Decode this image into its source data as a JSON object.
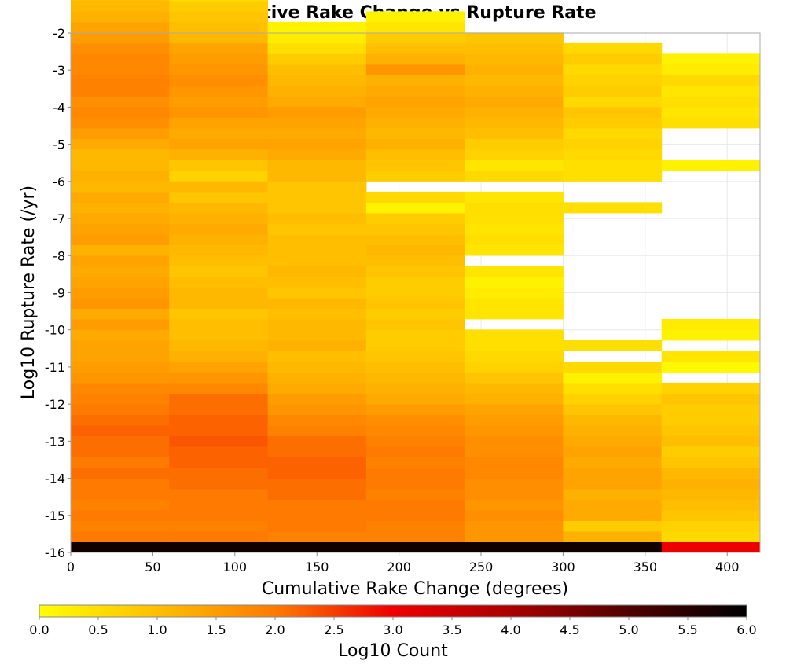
{
  "chart_data": {
    "type": "heatmap",
    "title": "Cumulative Rake Change vs Rupture Rate",
    "xlabel": "Cumulative Rake Change (degrees)",
    "ylabel": "Log10 Rupture Rate (/yr)",
    "xlim": [
      0,
      420
    ],
    "ylim": [
      -16,
      -2
    ],
    "x_ticks": [
      "0",
      "50",
      "100",
      "150",
      "200",
      "250",
      "300",
      "350",
      "400"
    ],
    "y_ticks": [
      "-2",
      "-3",
      "-4",
      "-5",
      "-6",
      "-7",
      "-8",
      "-9",
      "-10",
      "-11",
      "-12",
      "-13",
      "-14",
      "-15",
      "-16"
    ],
    "grid": true,
    "x_bin_edges": [
      0,
      60,
      120,
      180,
      240,
      300,
      360,
      420
    ],
    "y_bin_start": -16,
    "y_bin_width": 0.286,
    "values_note": "columns[i] lists Log10 Count per rupture-rate bin from bottom (-16) upward; null = empty bin",
    "columns": [
      [
        5.8,
        2.0,
        1.9,
        2.0,
        1.9,
        2.0,
        2.0,
        2.1,
        2.0,
        2.1,
        2.1,
        2.2,
        2.1,
        2.0,
        1.9,
        1.8,
        1.6,
        1.5,
        1.4,
        1.4,
        1.3,
        1.5,
        1.3,
        1.6,
        1.5,
        1.4,
        1.3,
        1.4,
        1.2,
        1.5,
        1.4,
        1.3,
        1.2,
        1.3,
        1.1,
        1.2,
        1.1,
        1.1,
        1.3,
        1.5,
        1.7,
        1.8,
        1.7,
        1.9,
        1.9,
        1.8,
        1.8,
        1.7,
        1.5,
        1.4,
        1.2,
        1.1,
        1.0,
        1.0,
        1.0,
        0.9,
        0.8,
        0.6,
        0.4,
        0.3,
        null,
        null,
        null,
        null,
        null,
        null,
        null,
        null,
        null,
        null,
        null,
        null,
        null,
        null,
        null,
        null,
        null,
        null,
        null,
        null
      ],
      [
        5.8,
        2.0,
        1.9,
        2.0,
        2.0,
        2.0,
        2.1,
        2.1,
        2.2,
        2.2,
        2.3,
        2.2,
        2.2,
        2.1,
        2.1,
        1.8,
        1.6,
        1.4,
        1.2,
        1.1,
        1.0,
        1.0,
        0.9,
        1.1,
        1.1,
        1.0,
        0.9,
        1.0,
        1.1,
        1.2,
        1.3,
        1.2,
        1.1,
        0.9,
        1.1,
        0.7,
        0.9,
        1.2,
        1.4,
        1.3,
        1.4,
        1.6,
        1.5,
        1.6,
        1.7,
        1.6,
        1.5,
        1.4,
        1.1,
        1.0,
        0.9,
        0.8,
        0.5,
        0.3,
        null,
        null,
        null,
        null,
        null,
        null,
        null,
        null,
        null,
        null,
        null,
        null,
        null,
        null,
        null,
        null,
        null,
        null,
        null,
        null,
        null,
        null,
        null,
        null,
        null,
        null
      ],
      [
        5.8,
        1.9,
        2.0,
        2.0,
        2.0,
        2.1,
        2.1,
        2.2,
        2.2,
        2.1,
        2.1,
        1.9,
        1.8,
        1.6,
        1.5,
        1.3,
        1.2,
        1.1,
        1.0,
        1.2,
        1.1,
        1.1,
        1.0,
        1.1,
        0.9,
        1.0,
        1.1,
        1.0,
        1.0,
        1.0,
        0.9,
        1.0,
        0.9,
        0.9,
        0.9,
        1.1,
        1.1,
        1.3,
        1.4,
        1.3,
        1.4,
        1.5,
        1.3,
        1.2,
        1.1,
        1.0,
        0.8,
        0.5,
        0.3,
        0.2,
        null,
        null,
        null,
        null,
        null,
        null,
        null,
        null,
        null,
        null,
        null,
        null,
        null,
        null,
        null,
        null,
        null,
        null,
        null,
        null,
        null,
        null,
        null,
        null,
        null,
        null,
        null,
        null,
        null,
        null
      ],
      [
        5.8,
        1.9,
        1.9,
        2.0,
        2.0,
        1.9,
        2.0,
        2.0,
        1.9,
        2.0,
        1.9,
        1.8,
        1.7,
        1.5,
        1.3,
        1.2,
        1.1,
        1.0,
        0.9,
        0.8,
        0.8,
        0.9,
        0.8,
        0.9,
        0.8,
        0.8,
        0.9,
        1.0,
        1.1,
        1.0,
        0.9,
        0.8,
        0.2,
        0.6,
        null,
        0.8,
        0.9,
        1.0,
        1.2,
        1.1,
        1.2,
        1.3,
        1.4,
        1.3,
        1.2,
        1.6,
        1.2,
        1.0,
        0.8,
        0.4,
        0.2,
        null,
        null,
        null,
        null,
        null,
        null,
        null,
        null,
        null,
        null,
        null,
        null,
        null,
        null,
        null,
        null,
        null,
        null,
        null,
        null,
        null,
        null,
        null,
        null,
        null,
        null,
        null,
        null,
        null
      ],
      [
        5.8,
        1.6,
        1.6,
        1.7,
        1.6,
        1.7,
        1.7,
        1.8,
        1.8,
        1.7,
        1.7,
        1.6,
        1.5,
        1.4,
        1.2,
        1.1,
        0.9,
        0.7,
        0.6,
        0.5,
        0.5,
        null,
        0.4,
        0.4,
        0.3,
        0.2,
        0.4,
        null,
        0.4,
        0.5,
        0.4,
        0.5,
        0.5,
        0.4,
        null,
        0.6,
        0.4,
        0.7,
        0.8,
        1.0,
        1.1,
        1.2,
        1.3,
        1.2,
        1.1,
        1.2,
        1.1,
        1.0,
        0.9,
        null,
        null,
        null,
        null,
        null,
        null,
        null,
        null,
        null,
        null,
        null,
        null,
        null,
        null,
        null,
        null,
        null,
        null,
        null,
        null,
        null,
        null,
        null,
        null,
        null,
        null,
        null,
        null,
        null,
        null,
        null
      ],
      [
        5.8,
        1.2,
        0.8,
        1.3,
        1.3,
        1.2,
        1.4,
        1.4,
        1.3,
        1.4,
        1.3,
        1.2,
        1.1,
        0.9,
        0.7,
        0.5,
        0.2,
        0.6,
        null,
        0.5,
        null,
        null,
        null,
        null,
        null,
        null,
        null,
        null,
        null,
        null,
        null,
        null,
        0.5,
        null,
        null,
        0.5,
        0.5,
        0.6,
        0.7,
        0.6,
        0.8,
        0.9,
        0.6,
        0.8,
        0.7,
        0.6,
        0.8,
        0.6,
        null,
        null,
        null,
        null,
        null,
        null,
        null,
        null,
        null,
        null,
        null,
        null,
        null,
        null,
        null,
        null,
        null,
        null,
        null,
        null,
        null,
        null,
        null,
        null,
        null,
        null,
        null,
        null,
        null,
        null,
        null,
        null
      ],
      [
        3.0,
        0.6,
        0.7,
        0.9,
        1.0,
        1.1,
        1.2,
        1.1,
        0.9,
        0.8,
        1.0,
        0.9,
        0.8,
        0.8,
        0.9,
        0.7,
        null,
        0.1,
        0.4,
        null,
        0.2,
        0.3,
        null,
        null,
        null,
        null,
        null,
        null,
        null,
        null,
        null,
        null,
        null,
        null,
        null,
        null,
        0.2,
        null,
        null,
        null,
        0.5,
        0.4,
        0.5,
        0.4,
        0.6,
        0.3,
        0.2,
        null,
        null,
        null,
        null,
        null,
        null,
        null,
        null,
        null,
        null,
        null,
        null,
        null,
        null,
        null,
        null,
        null,
        null,
        null,
        null,
        null,
        null,
        null,
        null,
        null,
        null,
        null,
        null,
        null,
        null,
        null,
        null,
        null
      ]
    ],
    "colorbar": {
      "label": "Log10 Count",
      "min": 0.0,
      "max": 6.0,
      "ticks": [
        "0.0",
        "0.5",
        "1.0",
        "1.5",
        "2.0",
        "2.5",
        "3.0",
        "3.5",
        "4.0",
        "4.5",
        "5.0",
        "5.5",
        "6.0"
      ],
      "colors": [
        "#ffff00",
        "#ffbf00",
        "#ff7a00",
        "#ee0000",
        "#aa0000",
        "#500000",
        "#000000"
      ]
    }
  }
}
